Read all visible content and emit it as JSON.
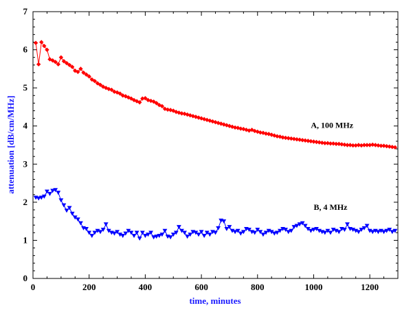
{
  "chart_data": {
    "type": "scatter",
    "xlabel": "time, minutes",
    "ylabel": "attenuation [dB/cm/MHz]",
    "xlim": [
      0,
      1300
    ],
    "ylim": [
      0,
      7
    ],
    "x_ticks": [
      0,
      200,
      400,
      600,
      800,
      1000,
      1200
    ],
    "y_ticks": [
      0,
      1,
      2,
      3,
      4,
      5,
      6,
      7
    ],
    "grid": false,
    "annotations": [
      {
        "text": "A, 100 MHz",
        "x": 990,
        "y": 3.95
      },
      {
        "text": "B, 4 MHz",
        "x": 1000,
        "y": 1.8
      }
    ],
    "series": [
      {
        "color": "#ff0000",
        "marker": "diamond",
        "points": [
          [
            10,
            6.18
          ],
          [
            20,
            5.62
          ],
          [
            30,
            6.2
          ],
          [
            40,
            6.1
          ],
          [
            50,
            6.0
          ],
          [
            60,
            5.75
          ],
          [
            70,
            5.72
          ],
          [
            80,
            5.68
          ],
          [
            90,
            5.62
          ],
          [
            100,
            5.8
          ],
          [
            110,
            5.7
          ],
          [
            120,
            5.65
          ],
          [
            130,
            5.6
          ],
          [
            140,
            5.55
          ],
          [
            150,
            5.45
          ],
          [
            160,
            5.42
          ],
          [
            170,
            5.5
          ],
          [
            180,
            5.4
          ],
          [
            190,
            5.35
          ],
          [
            200,
            5.3
          ],
          [
            210,
            5.22
          ],
          [
            220,
            5.18
          ],
          [
            230,
            5.12
          ],
          [
            240,
            5.08
          ],
          [
            250,
            5.03
          ],
          [
            260,
            5.0
          ],
          [
            270,
            4.97
          ],
          [
            280,
            4.95
          ],
          [
            290,
            4.9
          ],
          [
            300,
            4.88
          ],
          [
            310,
            4.85
          ],
          [
            320,
            4.8
          ],
          [
            330,
            4.78
          ],
          [
            340,
            4.75
          ],
          [
            350,
            4.72
          ],
          [
            360,
            4.68
          ],
          [
            370,
            4.65
          ],
          [
            380,
            4.62
          ],
          [
            390,
            4.72
          ],
          [
            400,
            4.73
          ],
          [
            410,
            4.68
          ],
          [
            420,
            4.66
          ],
          [
            430,
            4.64
          ],
          [
            440,
            4.6
          ],
          [
            450,
            4.55
          ],
          [
            460,
            4.52
          ],
          [
            470,
            4.45
          ],
          [
            480,
            4.43
          ],
          [
            490,
            4.42
          ],
          [
            500,
            4.4
          ],
          [
            510,
            4.37
          ],
          [
            520,
            4.35
          ],
          [
            530,
            4.33
          ],
          [
            540,
            4.32
          ],
          [
            550,
            4.3
          ],
          [
            560,
            4.28
          ],
          [
            570,
            4.26
          ],
          [
            580,
            4.24
          ],
          [
            590,
            4.22
          ],
          [
            600,
            4.2
          ],
          [
            610,
            4.18
          ],
          [
            620,
            4.16
          ],
          [
            630,
            4.14
          ],
          [
            640,
            4.12
          ],
          [
            650,
            4.1
          ],
          [
            660,
            4.08
          ],
          [
            670,
            4.06
          ],
          [
            680,
            4.04
          ],
          [
            690,
            4.02
          ],
          [
            700,
            4.0
          ],
          [
            710,
            3.98
          ],
          [
            720,
            3.96
          ],
          [
            730,
            3.95
          ],
          [
            740,
            3.93
          ],
          [
            750,
            3.92
          ],
          [
            760,
            3.9
          ],
          [
            770,
            3.88
          ],
          [
            780,
            3.9
          ],
          [
            790,
            3.87
          ],
          [
            800,
            3.85
          ],
          [
            810,
            3.83
          ],
          [
            820,
            3.82
          ],
          [
            830,
            3.8
          ],
          [
            840,
            3.79
          ],
          [
            850,
            3.77
          ],
          [
            860,
            3.75
          ],
          [
            870,
            3.73
          ],
          [
            880,
            3.72
          ],
          [
            890,
            3.7
          ],
          [
            900,
            3.69
          ],
          [
            910,
            3.68
          ],
          [
            920,
            3.67
          ],
          [
            930,
            3.66
          ],
          [
            940,
            3.65
          ],
          [
            950,
            3.64
          ],
          [
            960,
            3.63
          ],
          [
            970,
            3.62
          ],
          [
            980,
            3.61
          ],
          [
            990,
            3.6
          ],
          [
            1000,
            3.59
          ],
          [
            1010,
            3.58
          ],
          [
            1020,
            3.57
          ],
          [
            1030,
            3.56
          ],
          [
            1040,
            3.55
          ],
          [
            1050,
            3.55
          ],
          [
            1060,
            3.54
          ],
          [
            1070,
            3.54
          ],
          [
            1080,
            3.53
          ],
          [
            1090,
            3.53
          ],
          [
            1100,
            3.52
          ],
          [
            1110,
            3.51
          ],
          [
            1120,
            3.5
          ],
          [
            1130,
            3.5
          ],
          [
            1140,
            3.49
          ],
          [
            1150,
            3.49
          ],
          [
            1160,
            3.5
          ],
          [
            1170,
            3.49
          ],
          [
            1180,
            3.5
          ],
          [
            1190,
            3.5
          ],
          [
            1200,
            3.5
          ],
          [
            1210,
            3.51
          ],
          [
            1220,
            3.5
          ],
          [
            1230,
            3.49
          ],
          [
            1240,
            3.48
          ],
          [
            1250,
            3.48
          ],
          [
            1260,
            3.47
          ],
          [
            1270,
            3.46
          ],
          [
            1280,
            3.45
          ],
          [
            1290,
            3.44
          ]
        ]
      },
      {
        "color": "#0000ff",
        "marker": "triangle-down",
        "points": [
          [
            10,
            2.12
          ],
          [
            20,
            2.1
          ],
          [
            30,
            2.12
          ],
          [
            40,
            2.15
          ],
          [
            50,
            2.28
          ],
          [
            60,
            2.22
          ],
          [
            70,
            2.3
          ],
          [
            80,
            2.32
          ],
          [
            90,
            2.25
          ],
          [
            100,
            2.05
          ],
          [
            110,
            1.92
          ],
          [
            120,
            1.78
          ],
          [
            130,
            1.85
          ],
          [
            140,
            1.7
          ],
          [
            150,
            1.6
          ],
          [
            160,
            1.55
          ],
          [
            170,
            1.45
          ],
          [
            180,
            1.32
          ],
          [
            190,
            1.3
          ],
          [
            200,
            1.2
          ],
          [
            210,
            1.12
          ],
          [
            220,
            1.2
          ],
          [
            230,
            1.25
          ],
          [
            240,
            1.22
          ],
          [
            250,
            1.28
          ],
          [
            260,
            1.42
          ],
          [
            270,
            1.25
          ],
          [
            280,
            1.2
          ],
          [
            290,
            1.18
          ],
          [
            300,
            1.22
          ],
          [
            310,
            1.15
          ],
          [
            320,
            1.12
          ],
          [
            330,
            1.18
          ],
          [
            340,
            1.25
          ],
          [
            350,
            1.2
          ],
          [
            360,
            1.12
          ],
          [
            370,
            1.2
          ],
          [
            380,
            1.05
          ],
          [
            390,
            1.2
          ],
          [
            400,
            1.12
          ],
          [
            410,
            1.15
          ],
          [
            420,
            1.2
          ],
          [
            430,
            1.08
          ],
          [
            440,
            1.1
          ],
          [
            450,
            1.12
          ],
          [
            460,
            1.15
          ],
          [
            470,
            1.25
          ],
          [
            480,
            1.1
          ],
          [
            490,
            1.08
          ],
          [
            500,
            1.15
          ],
          [
            510,
            1.2
          ],
          [
            520,
            1.35
          ],
          [
            530,
            1.25
          ],
          [
            540,
            1.2
          ],
          [
            550,
            1.1
          ],
          [
            560,
            1.15
          ],
          [
            570,
            1.22
          ],
          [
            580,
            1.2
          ],
          [
            590,
            1.15
          ],
          [
            600,
            1.22
          ],
          [
            610,
            1.12
          ],
          [
            620,
            1.2
          ],
          [
            630,
            1.15
          ],
          [
            640,
            1.22
          ],
          [
            650,
            1.2
          ],
          [
            660,
            1.32
          ],
          [
            670,
            1.52
          ],
          [
            680,
            1.5
          ],
          [
            690,
            1.3
          ],
          [
            700,
            1.35
          ],
          [
            710,
            1.25
          ],
          [
            720,
            1.22
          ],
          [
            730,
            1.25
          ],
          [
            740,
            1.18
          ],
          [
            750,
            1.22
          ],
          [
            760,
            1.3
          ],
          [
            770,
            1.28
          ],
          [
            780,
            1.22
          ],
          [
            790,
            1.2
          ],
          [
            800,
            1.28
          ],
          [
            810,
            1.22
          ],
          [
            820,
            1.15
          ],
          [
            830,
            1.2
          ],
          [
            840,
            1.25
          ],
          [
            850,
            1.22
          ],
          [
            860,
            1.18
          ],
          [
            870,
            1.2
          ],
          [
            880,
            1.25
          ],
          [
            890,
            1.3
          ],
          [
            900,
            1.28
          ],
          [
            910,
            1.22
          ],
          [
            920,
            1.25
          ],
          [
            930,
            1.35
          ],
          [
            940,
            1.38
          ],
          [
            950,
            1.42
          ],
          [
            960,
            1.45
          ],
          [
            970,
            1.38
          ],
          [
            980,
            1.3
          ],
          [
            990,
            1.25
          ],
          [
            1000,
            1.28
          ],
          [
            1010,
            1.3
          ],
          [
            1020,
            1.25
          ],
          [
            1030,
            1.22
          ],
          [
            1040,
            1.2
          ],
          [
            1050,
            1.25
          ],
          [
            1060,
            1.2
          ],
          [
            1070,
            1.28
          ],
          [
            1080,
            1.25
          ],
          [
            1090,
            1.22
          ],
          [
            1100,
            1.3
          ],
          [
            1110,
            1.28
          ],
          [
            1120,
            1.42
          ],
          [
            1130,
            1.3
          ],
          [
            1140,
            1.28
          ],
          [
            1150,
            1.25
          ],
          [
            1160,
            1.22
          ],
          [
            1170,
            1.28
          ],
          [
            1180,
            1.32
          ],
          [
            1190,
            1.38
          ],
          [
            1200,
            1.25
          ],
          [
            1210,
            1.22
          ],
          [
            1220,
            1.25
          ],
          [
            1230,
            1.22
          ],
          [
            1240,
            1.25
          ],
          [
            1250,
            1.22
          ],
          [
            1260,
            1.25
          ],
          [
            1270,
            1.28
          ],
          [
            1280,
            1.22
          ],
          [
            1290,
            1.25
          ]
        ]
      }
    ]
  }
}
